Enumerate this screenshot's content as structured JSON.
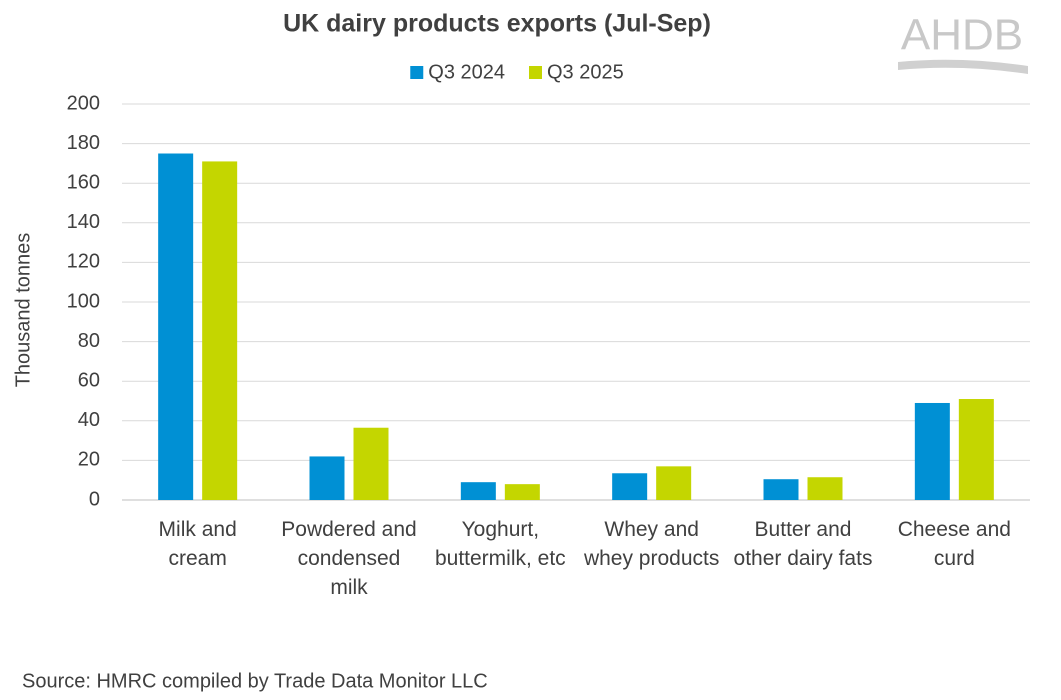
{
  "logo": "AHDB",
  "chart_data": {
    "type": "bar",
    "title": "UK dairy products exports (Jul-Sep)",
    "y_label": "Thousand tonnes",
    "source": "Source: HMRC compiled by Trade Data Monitor LLC",
    "categories": [
      "Milk and cream",
      "Powdered and condensed milk",
      "Yoghurt, buttermilk, etc",
      "Whey and whey products",
      "Butter and other dairy fats",
      "Cheese and curd"
    ],
    "series": [
      {
        "name": "Q3 2024",
        "color": "#0090d4",
        "values": [
          175,
          22,
          9,
          13.5,
          10.5,
          49
        ]
      },
      {
        "name": "Q3 2025",
        "color": "#c4d600",
        "values": [
          171,
          36.5,
          8,
          17,
          11.5,
          51
        ]
      }
    ],
    "ylim": [
      0,
      200
    ],
    "yticks": [
      0,
      20,
      40,
      60,
      80,
      100,
      120,
      140,
      160,
      180,
      200
    ],
    "grid": true,
    "legend": "top"
  }
}
